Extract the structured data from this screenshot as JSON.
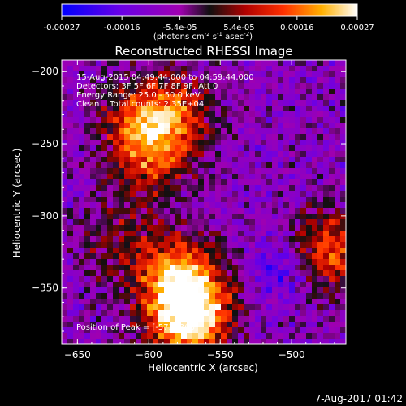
{
  "colorbar": {
    "ticks": [
      "-0.00027",
      "-0.00016",
      "-5.4e-05",
      "5.4e-05",
      "0.00016",
      "0.00027"
    ],
    "units_text": "(photons cm",
    "units_exp1": "-2",
    "units_mid": " s",
    "units_exp2": "-1",
    "units_mid2": " asec",
    "units_exp3": "-2",
    "units_end": ")",
    "range": [
      -0.00027,
      0.00027
    ]
  },
  "chart_data": {
    "type": "heatmap",
    "title": "Reconstructed RHESSI Image",
    "xlabel": "Heliocentric X (arcsec)",
    "ylabel": "Heliocentric Y (arcsec)",
    "xlim": [
      -661,
      -462
    ],
    "ylim": [
      -389,
      -192
    ],
    "xticks": [
      -650,
      -600,
      -550,
      -500
    ],
    "yticks": [
      -200,
      -250,
      -300,
      -350
    ],
    "xtick_labels": [
      "−650",
      "−600",
      "−550",
      "−500"
    ],
    "ytick_labels": [
      "−200",
      "−250",
      "−300",
      "−350"
    ],
    "grid": false,
    "annotations": [
      "15-Aug-2015 04:49:44.000 to 04:59:44.000",
      "Detectors: 3F 5F 6F 7F 8F 9F, Att 0",
      "Energy Range: 25.0 - 50.0 keV",
      "Clean    Total counts: 2.35E+04"
    ],
    "peak_label": "Position of Peak = [-573,-368]",
    "peak_position": [
      -573,
      -368
    ],
    "bright_regions": [
      {
        "x": -605,
        "y": -231,
        "level": 0.45
      },
      {
        "x": -580,
        "y": -232,
        "level": 0.4
      },
      {
        "x": -600,
        "y": -262,
        "level": 0.4
      },
      {
        "x": -622,
        "y": -320,
        "level": 0.25
      },
      {
        "x": -578,
        "y": -338,
        "level": 0.55
      },
      {
        "x": -573,
        "y": -368,
        "level": 1.0
      },
      {
        "x": -475,
        "y": -325,
        "level": 0.55
      }
    ]
  },
  "footer_date": "7-Aug-2017 01:42"
}
